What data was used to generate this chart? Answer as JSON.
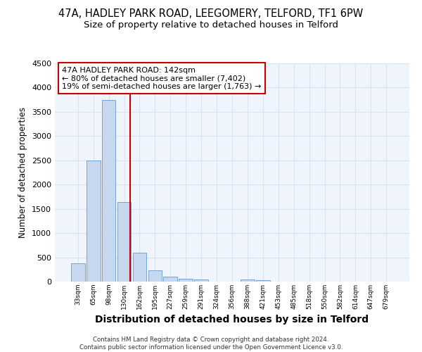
{
  "title_line1": "47A, HADLEY PARK ROAD, LEEGOMERY, TELFORD, TF1 6PW",
  "title_line2": "Size of property relative to detached houses in Telford",
  "xlabel": "Distribution of detached houses by size in Telford",
  "ylabel": "Number of detached properties",
  "bin_labels": [
    "33sqm",
    "65sqm",
    "98sqm",
    "130sqm",
    "162sqm",
    "195sqm",
    "227sqm",
    "259sqm",
    "291sqm",
    "324sqm",
    "356sqm",
    "388sqm",
    "421sqm",
    "453sqm",
    "485sqm",
    "518sqm",
    "550sqm",
    "582sqm",
    "614sqm",
    "647sqm",
    "679sqm"
  ],
  "bar_values": [
    375,
    2500,
    3750,
    1640,
    590,
    235,
    105,
    60,
    45,
    0,
    0,
    50,
    30,
    0,
    0,
    0,
    0,
    0,
    0,
    0,
    0
  ],
  "bar_color": "#c5d8f0",
  "bar_edge_color": "#6699cc",
  "vline_color": "#cc0000",
  "annotation_text": "47A HADLEY PARK ROAD: 142sqm\n← 80% of detached houses are smaller (7,402)\n19% of semi-detached houses are larger (1,763) →",
  "annotation_box_facecolor": "#ffffff",
  "annotation_box_edgecolor": "#cc0000",
  "ylim": [
    0,
    4500
  ],
  "yticks": [
    0,
    500,
    1000,
    1500,
    2000,
    2500,
    3000,
    3500,
    4000,
    4500
  ],
  "footer_line1": "Contains HM Land Registry data © Crown copyright and database right 2024.",
  "footer_line2": "Contains public sector information licensed under the Open Government Licence v3.0.",
  "fig_bg_color": "#ffffff",
  "plot_bg_color": "#f0f4fc",
  "grid_color": "#d8e4f0",
  "title1_fontsize": 10.5,
  "title2_fontsize": 9.5,
  "xlabel_fontsize": 10,
  "ylabel_fontsize": 8.5,
  "annotation_fontsize": 8.0
}
